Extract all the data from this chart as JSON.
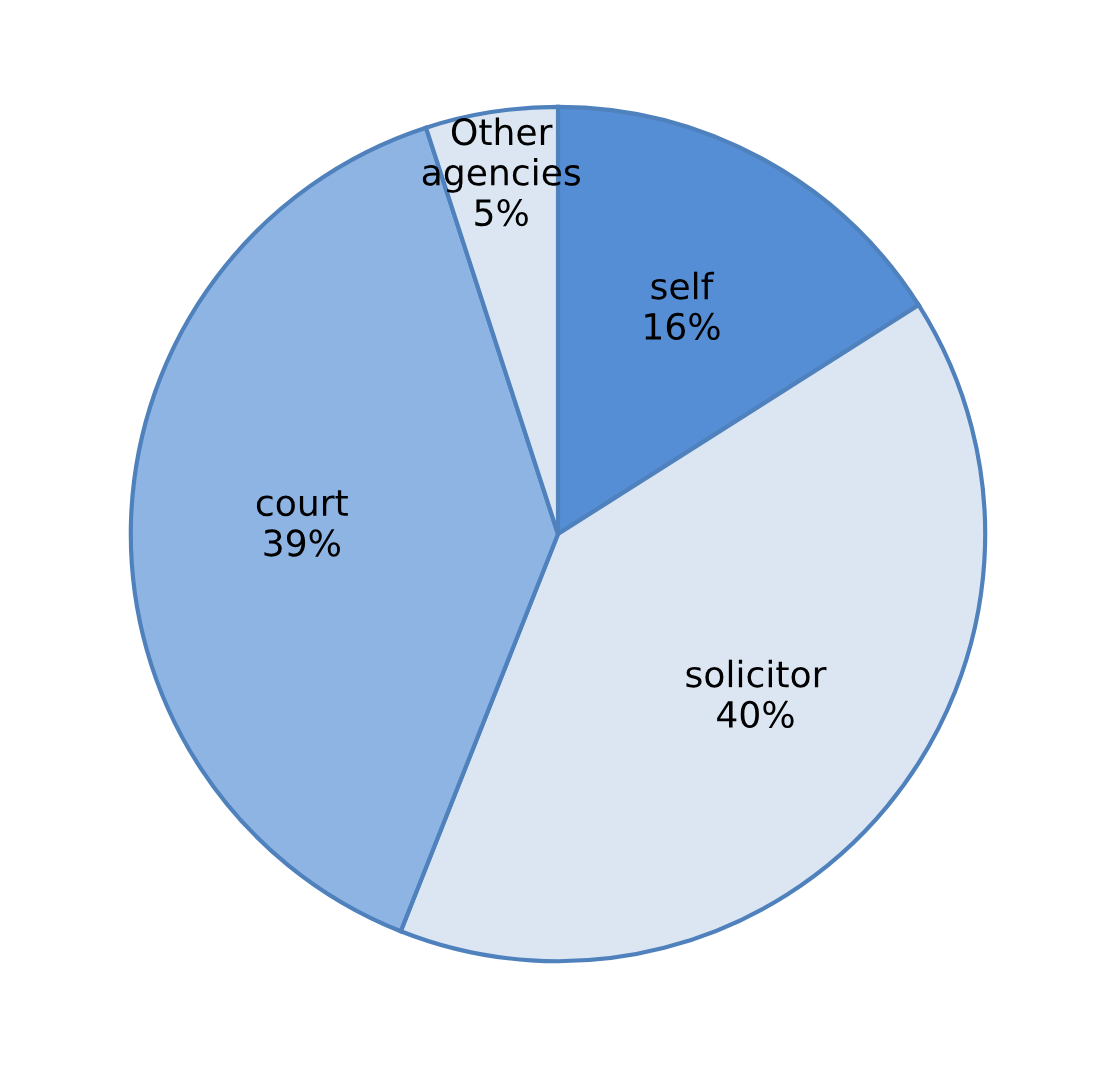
{
  "chart_data": {
    "type": "pie",
    "categories": [
      "self",
      "solicitor",
      "court",
      "Other\nagencies"
    ],
    "values": [
      16,
      40,
      39,
      5
    ],
    "value_labels": [
      "16%",
      "40%",
      "39%",
      "5%"
    ],
    "colors": [
      "#558ed5",
      "#dce6f2",
      "#8eb4e3",
      "#dce6f2"
    ],
    "legend": false
  }
}
